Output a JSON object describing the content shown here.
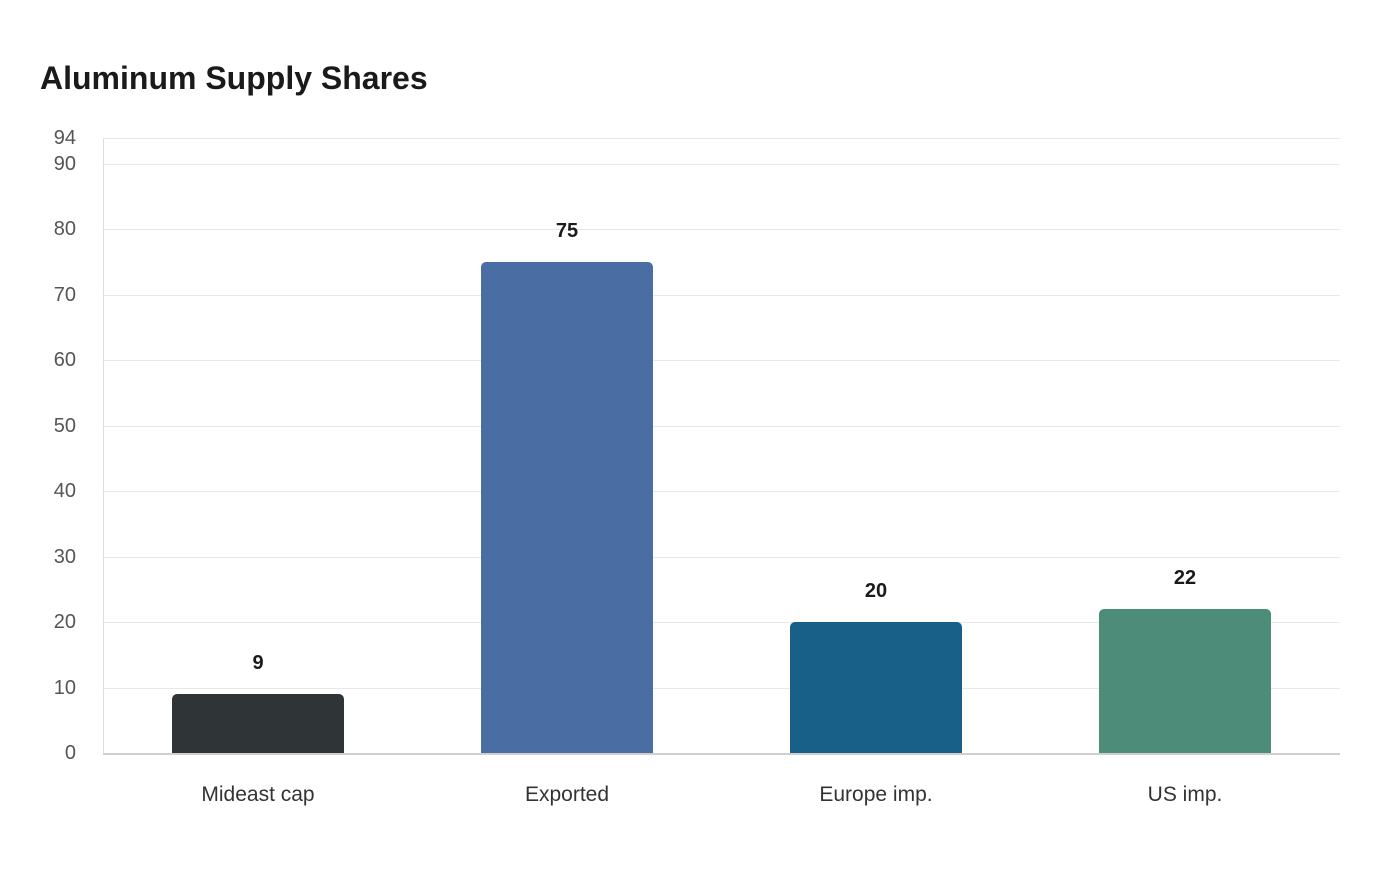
{
  "title": "Aluminum Supply Shares",
  "chart_data": {
    "type": "bar",
    "title": "Aluminum Supply Shares",
    "xlabel": "",
    "ylabel": "",
    "categories": [
      "Mideast cap",
      "Exported",
      "Europe imp.",
      "US imp."
    ],
    "values": [
      9,
      75,
      20,
      22
    ],
    "colors": [
      "#2f3437",
      "#4a6ea3",
      "#196088",
      "#4e8c7a"
    ],
    "ylim": [
      0,
      94
    ],
    "yticks": [
      0,
      10,
      20,
      30,
      40,
      50,
      60,
      70,
      80,
      90,
      94
    ],
    "grid": true,
    "legend": "none",
    "data_labels": [
      "9",
      "75",
      "20",
      "22"
    ]
  }
}
